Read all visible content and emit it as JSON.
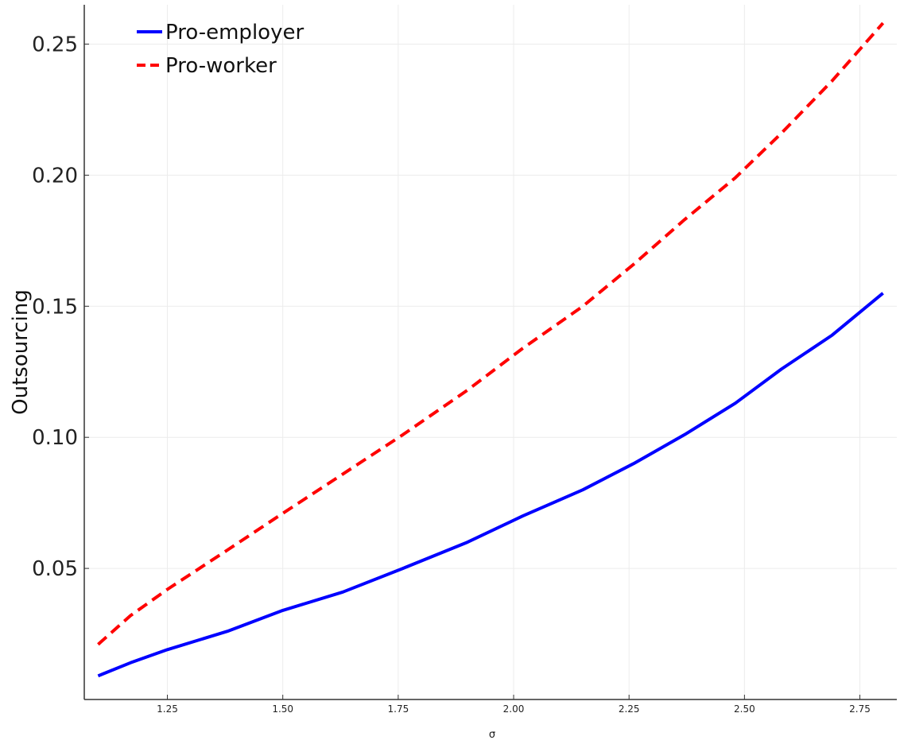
{
  "chart_data": {
    "type": "line",
    "title": "",
    "xlabel": "σ",
    "ylabel": "Outsourcing",
    "xlim": [
      1.07,
      2.83
    ],
    "ylim": [
      0.0,
      0.265
    ],
    "x_ticks": [
      1.25,
      1.5,
      1.75,
      2.0,
      2.25,
      2.5,
      2.75
    ],
    "x_tick_labels": [
      "1.25",
      "1.50",
      "1.75",
      "2.00",
      "2.25",
      "2.50",
      "2.75"
    ],
    "y_ticks": [
      0.05,
      0.1,
      0.15,
      0.2,
      0.25
    ],
    "y_tick_labels": [
      "0.05",
      "0.10",
      "0.15",
      "0.20",
      "0.25"
    ],
    "grid": true,
    "legend_position": "top-left",
    "series": [
      {
        "name": "Pro-employer",
        "color": "#0000ff",
        "style": "solid",
        "x": [
          1.1,
          1.17,
          1.25,
          1.38,
          1.5,
          1.63,
          1.76,
          1.9,
          2.02,
          2.15,
          2.26,
          2.37,
          2.48,
          2.58,
          2.69,
          2.8
        ],
        "y": [
          0.009,
          0.014,
          0.019,
          0.026,
          0.034,
          0.041,
          0.05,
          0.06,
          0.07,
          0.08,
          0.09,
          0.101,
          0.113,
          0.126,
          0.139,
          0.155
        ]
      },
      {
        "name": "Pro-worker",
        "color": "#ff0000",
        "style": "dashed",
        "x": [
          1.1,
          1.17,
          1.25,
          1.38,
          1.5,
          1.63,
          1.76,
          1.9,
          2.02,
          2.15,
          2.26,
          2.37,
          2.48,
          2.58,
          2.69,
          2.8
        ],
        "y": [
          0.021,
          0.032,
          0.042,
          0.057,
          0.071,
          0.086,
          0.101,
          0.118,
          0.134,
          0.15,
          0.166,
          0.183,
          0.199,
          0.216,
          0.236,
          0.258
        ]
      }
    ]
  }
}
